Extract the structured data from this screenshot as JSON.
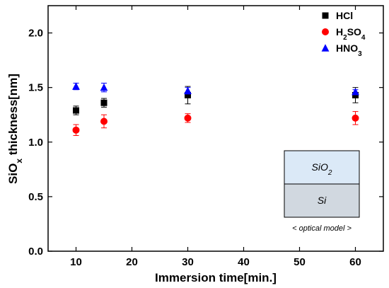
{
  "chart_data": {
    "type": "scatter",
    "xlabel": "Immersion time[min.]",
    "ylabel": {
      "main": "SiO",
      "sub": "x",
      "rest": " thickness[nm]"
    },
    "xlim": [
      5,
      65
    ],
    "ylim": [
      0.0,
      2.25
    ],
    "xticks": [
      10,
      20,
      30,
      40,
      50,
      60
    ],
    "yticks": [
      0.0,
      0.5,
      1.0,
      1.5,
      2.0
    ],
    "ytick_labels": [
      "0.0",
      "0.5",
      "1.0",
      "1.5",
      "2.0"
    ],
    "grid": false,
    "legend_position": "top-right",
    "series": [
      {
        "name": "HCl",
        "marker": "square",
        "color": "#000000",
        "x": [
          10,
          15,
          30,
          60
        ],
        "y": [
          1.29,
          1.36,
          1.43,
          1.43
        ],
        "err": [
          0.04,
          0.04,
          0.08,
          0.07
        ]
      },
      {
        "name": "H2SO4",
        "legend_parts": [
          {
            "t": "H",
            "sub": false
          },
          {
            "t": "2",
            "sub": true
          },
          {
            "t": "SO",
            "sub": false
          },
          {
            "t": "4",
            "sub": true
          }
        ],
        "marker": "circle",
        "color": "#ff0000",
        "x": [
          10,
          15,
          30,
          60
        ],
        "y": [
          1.11,
          1.19,
          1.22,
          1.22
        ],
        "err": [
          0.05,
          0.06,
          0.04,
          0.06
        ]
      },
      {
        "name": "HNO3",
        "legend_parts": [
          {
            "t": "HNO",
            "sub": false
          },
          {
            "t": "3",
            "sub": true
          }
        ],
        "marker": "triangle",
        "color": "#0000ff",
        "x": [
          10,
          15,
          30,
          60
        ],
        "y": [
          1.51,
          1.5,
          1.47,
          1.46
        ],
        "err": [
          0.03,
          0.04,
          0.03,
          0.02
        ]
      }
    ],
    "inset": {
      "top_layer": "SiO",
      "top_layer_sub": "2",
      "bottom_layer": "Si",
      "caption": "< optical model >",
      "top_color": "#dbe9f7",
      "bottom_color": "#d1d8e0"
    }
  }
}
